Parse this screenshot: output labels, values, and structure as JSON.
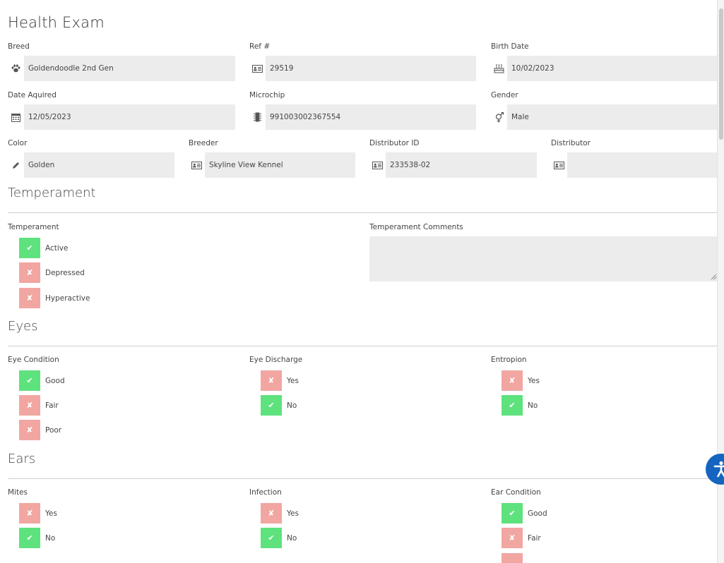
{
  "title": "Health Exam",
  "fields": {
    "breed": {
      "label": "Breed",
      "value": "Goldendoodle 2nd Gen",
      "icon": "paw-icon"
    },
    "ref": {
      "label": "Ref #",
      "value": "29519",
      "icon": "id-card-icon"
    },
    "birth_date": {
      "label": "Birth Date",
      "value": "10/02/2023",
      "icon": "birthday-cake-icon"
    },
    "date_acquired": {
      "label": "Date Aquired",
      "value": "12/05/2023",
      "icon": "calendar-icon"
    },
    "microchip": {
      "label": "Microchip",
      "value": "991003002367554",
      "icon": "microchip-icon"
    },
    "gender": {
      "label": "Gender",
      "value": "Male",
      "icon": "gender-icon"
    },
    "color": {
      "label": "Color",
      "value": "Golden",
      "icon": "pencil-icon"
    },
    "breeder": {
      "label": "Breeder",
      "value": "Skyline View Kennel",
      "icon": "id-card-icon"
    },
    "distributor_id": {
      "label": "Distributor ID",
      "value": "233538-02",
      "icon": "id-card-icon"
    },
    "distributor": {
      "label": "Distributor",
      "value": "",
      "icon": "id-card-icon"
    }
  },
  "temperament": {
    "section_title": "Temperament",
    "label": "Temperament",
    "options": [
      {
        "label": "Active",
        "checked": true
      },
      {
        "label": "Depressed",
        "checked": false
      },
      {
        "label": "Hyperactive",
        "checked": false
      }
    ],
    "comments_label": "Temperament Comments",
    "comments_value": ""
  },
  "eyes": {
    "section_title": "Eyes",
    "eye_condition": {
      "label": "Eye Condition",
      "options": [
        {
          "label": "Good",
          "checked": true
        },
        {
          "label": "Fair",
          "checked": false
        },
        {
          "label": "Poor",
          "checked": false
        }
      ]
    },
    "eye_discharge": {
      "label": "Eye Discharge",
      "options": [
        {
          "label": "Yes",
          "checked": false
        },
        {
          "label": "No",
          "checked": true
        }
      ]
    },
    "entropion": {
      "label": "Entropion",
      "options": [
        {
          "label": "Yes",
          "checked": false
        },
        {
          "label": "No",
          "checked": true
        }
      ]
    }
  },
  "ears": {
    "section_title": "Ears",
    "mites": {
      "label": "Mites",
      "options": [
        {
          "label": "Yes",
          "checked": false
        },
        {
          "label": "No",
          "checked": true
        }
      ]
    },
    "infection": {
      "label": "Infection",
      "options": [
        {
          "label": "Yes",
          "checked": false
        },
        {
          "label": "No",
          "checked": true
        }
      ]
    },
    "ear_condition": {
      "label": "Ear Condition",
      "options": [
        {
          "label": "Good",
          "checked": true
        },
        {
          "label": "Fair",
          "checked": false
        }
      ]
    }
  },
  "colors": {
    "checked": "#5ee27d",
    "unchecked": "#f2a6a1",
    "field_bg": "#ececec",
    "accessibility": "#1565c0"
  },
  "glyphs": {
    "check": "✔",
    "cross": "✘"
  }
}
